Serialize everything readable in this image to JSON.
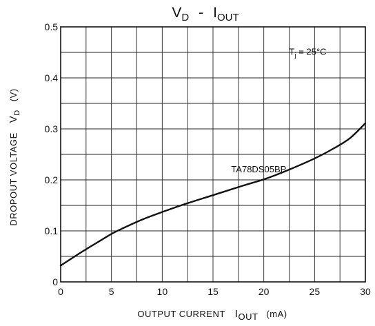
{
  "chart_data": {
    "type": "line",
    "title": {
      "main": "V",
      "main_sub": "D",
      "separator": "-",
      "second": "I",
      "second_sub": "OUT"
    },
    "xlabel": {
      "text": "OUTPUT CURRENT",
      "symbol": "I",
      "symbol_sub": "OUT",
      "unit": "(mA)"
    },
    "ylabel": {
      "text": "DROPOUT VOLTAGE",
      "symbol": "V",
      "symbol_sub": "D",
      "unit": "(V)"
    },
    "xlim": [
      0,
      30
    ],
    "ylim": [
      0,
      0.5
    ],
    "x_ticks": [
      0,
      5,
      10,
      15,
      20,
      25,
      30
    ],
    "x_tick_labels": [
      "0",
      "5",
      "10",
      "15",
      "20",
      "25",
      "30"
    ],
    "y_ticks": [
      0,
      0.1,
      0.2,
      0.3,
      0.4,
      0.5
    ],
    "y_tick_labels": [
      "0",
      "0.1",
      "0.2",
      "0.3",
      "0.4",
      "0.5"
    ],
    "grid": true,
    "series": [
      {
        "name": "TA78DS05BP",
        "x": [
          0,
          1,
          2.5,
          4,
          5,
          6,
          8,
          10,
          12,
          15,
          18,
          20,
          22,
          25,
          27,
          28.5,
          30
        ],
        "y": [
          0.032,
          0.045,
          0.064,
          0.082,
          0.094,
          0.104,
          0.122,
          0.137,
          0.151,
          0.17,
          0.189,
          0.201,
          0.216,
          0.242,
          0.263,
          0.282,
          0.311
        ]
      }
    ],
    "annotations": [
      {
        "label": "TA78DS05BP",
        "x": 19.5,
        "y": 0.215
      },
      {
        "label": "T",
        "sub": "j",
        "rest": " = 25°C",
        "x": 22.5,
        "y": 0.445
      }
    ],
    "colors": {
      "line": "#111111",
      "grid": "#222222",
      "background": "#ffffff"
    }
  }
}
